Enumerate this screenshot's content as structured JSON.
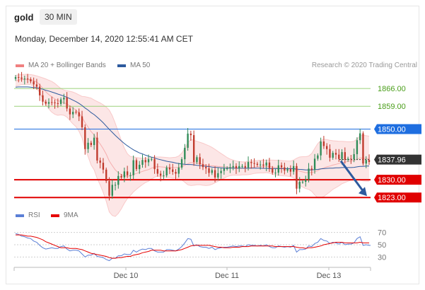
{
  "header": {
    "symbol": "gold",
    "timeframe": "30 MIN",
    "datetime": "Monday, December 14, 2020 12:55:41 AM CET"
  },
  "legend": {
    "bb_label": "MA 20 + Bollinger Bands",
    "ma50_label": "MA 50",
    "credit": "Research © 2020 Trading Central"
  },
  "rsi_legend": {
    "rsi_label": "RSI",
    "ma_label": "9MA"
  },
  "colors": {
    "bollinger": "#f08080",
    "ma50": "#2d5a9e",
    "resistance_green": "#4a9e1a",
    "pivot_blue": "#1e6ee0",
    "support_red": "#e00000",
    "current_price": "#333333",
    "candle_up": "#2e8b57",
    "candle_down": "#c0392b",
    "rsi": "#5b7fd6",
    "rsi_ma": "#e60000"
  },
  "chart_data": [
    {
      "type": "candlestick",
      "title": "",
      "ylim": [
        1820,
        1873
      ],
      "x_ticks": [
        "Dec 10",
        "Dec 11",
        "Dec 13"
      ],
      "series": [
        {
          "name": "MA 20 + Bollinger Bands",
          "kind": "bollinger"
        },
        {
          "name": "MA 50",
          "kind": "line"
        }
      ],
      "close": [
        1870.5,
        1870.3,
        1869.8,
        1869.9,
        1869.6,
        1868.8,
        1867.6,
        1866.7,
        1863.3,
        1860.8,
        1860.0,
        1860.6,
        1860.5,
        1860.2,
        1859.9,
        1861.7,
        1862.4,
        1858.1,
        1855.8,
        1856.8,
        1856.6,
        1855.0,
        1850.7,
        1842.1,
        1844.6,
        1843.7,
        1846.6,
        1837.6,
        1836.7,
        1834.0,
        1829.5,
        1823.7,
        1828.0,
        1828.0,
        1831.5,
        1830.9,
        1833.3,
        1831.8,
        1831.8,
        1837.7,
        1834.2,
        1835.9,
        1837.8,
        1836.9,
        1838.1,
        1838.2,
        1834.2,
        1832.4,
        1831.6,
        1831.7,
        1834.8,
        1834.1,
        1833.1,
        1832.4,
        1834.8,
        1838.1,
        1842.6,
        1848.2,
        1847.6,
        1837.0,
        1838.9,
        1836.1,
        1835.0,
        1834.5,
        1832.7,
        1833.8,
        1830.9,
        1832.6,
        1833.5,
        1834.4,
        1834.5,
        1834.9,
        1835.4,
        1834.5,
        1835.4,
        1835.4,
        1834.8,
        1837.0,
        1836.6,
        1836.3,
        1835.9,
        1836.0,
        1835.6,
        1836.8,
        1834.6,
        1832.8,
        1832.8,
        1835.7,
        1834.9,
        1833.6,
        1834.2,
        1833.2,
        1835.4,
        1826.5,
        1829.2,
        1829.2,
        1830.1,
        1834.4,
        1833.9,
        1838.3,
        1839.6,
        1845.1,
        1843.3,
        1842.1,
        1838.7,
        1840.6,
        1839.9,
        1838.2,
        1840.9,
        1837.9,
        1838.3,
        1838.1,
        1840.1,
        1845.6,
        1848.3,
        1836.4,
        1837.8,
        1837.0
      ],
      "open": [
        1869.8,
        1870.5,
        1870.3,
        1869.8,
        1869.9,
        1869.6,
        1868.8,
        1867.6,
        1866.7,
        1863.3,
        1860.8,
        1860.0,
        1860.6,
        1860.5,
        1860.2,
        1859.9,
        1861.7,
        1862.4,
        1858.1,
        1855.8,
        1856.8,
        1856.6,
        1855.0,
        1850.7,
        1842.1,
        1844.6,
        1843.7,
        1846.6,
        1837.6,
        1836.7,
        1834.0,
        1829.5,
        1823.7,
        1828.0,
        1828.0,
        1831.5,
        1830.9,
        1833.3,
        1831.8,
        1831.8,
        1837.7,
        1834.2,
        1835.9,
        1837.8,
        1836.9,
        1838.1,
        1838.2,
        1834.2,
        1832.4,
        1831.6,
        1831.7,
        1834.8,
        1834.1,
        1833.1,
        1832.4,
        1834.8,
        1838.1,
        1842.6,
        1848.2,
        1847.6,
        1837.0,
        1838.9,
        1836.1,
        1835.0,
        1834.5,
        1832.7,
        1833.8,
        1830.9,
        1832.6,
        1833.5,
        1834.4,
        1834.5,
        1834.9,
        1835.4,
        1834.5,
        1835.4,
        1835.4,
        1834.8,
        1837.0,
        1836.6,
        1836.3,
        1835.9,
        1836.0,
        1835.6,
        1836.8,
        1834.6,
        1832.8,
        1832.8,
        1835.7,
        1834.9,
        1833.6,
        1834.2,
        1833.2,
        1835.4,
        1826.5,
        1829.2,
        1829.2,
        1830.1,
        1834.4,
        1833.9,
        1838.3,
        1839.6,
        1845.1,
        1843.3,
        1842.1,
        1838.7,
        1840.6,
        1839.9,
        1838.2,
        1840.9,
        1837.9,
        1838.3,
        1838.1,
        1840.1,
        1845.6,
        1848.3,
        1836.4,
        1837.8
      ],
      "ma20": [
        1869.0,
        1869.3,
        1869.5,
        1869.6,
        1869.6,
        1869.5,
        1869.1,
        1868.5,
        1867.5,
        1866.1,
        1864.7,
        1863.6,
        1862.7,
        1861.9,
        1861.2,
        1860.8,
        1860.4,
        1859.9,
        1859.1,
        1858.3,
        1857.5,
        1856.3,
        1854.7,
        1852.5,
        1850.8,
        1849.0,
        1847.7,
        1845.7,
        1844.1,
        1842.3,
        1840.1,
        1837.4,
        1835.6,
        1833.9,
        1832.8,
        1832.0,
        1831.6,
        1831.4,
        1831.5,
        1832.1,
        1832.5,
        1832.9,
        1833.3,
        1833.7,
        1834.0,
        1834.6,
        1835.0,
        1835.2,
        1835.1,
        1835.0,
        1834.9,
        1834.8,
        1834.7,
        1834.8,
        1834.9,
        1835.2,
        1835.7,
        1836.3,
        1836.8,
        1836.7,
        1836.6,
        1836.4,
        1836.1,
        1835.8,
        1835.6,
        1835.5,
        1835.4,
        1835.3,
        1835.2,
        1835.1,
        1835.0,
        1834.9,
        1834.8,
        1834.6,
        1834.5,
        1834.5,
        1834.5,
        1834.6,
        1834.8,
        1835.0,
        1835.1,
        1835.2,
        1835.2,
        1835.3,
        1835.2,
        1835.0,
        1834.8,
        1834.7,
        1834.6,
        1834.5,
        1834.4,
        1834.3,
        1834.3,
        1833.8,
        1833.4,
        1833.1,
        1832.8,
        1832.8,
        1832.9,
        1833.2,
        1833.6,
        1834.2,
        1834.7,
        1835.1,
        1835.4,
        1835.8,
        1836.1,
        1836.4,
        1836.8,
        1837.0,
        1837.2,
        1837.4,
        1837.6,
        1838.1,
        1838.6,
        1838.5,
        1838.4,
        1838.3
      ],
      "bb_upper": [
        1871.2,
        1871.4,
        1871.5,
        1871.6,
        1871.6,
        1871.5,
        1871.3,
        1871.0,
        1870.6,
        1870.2,
        1869.8,
        1869.3,
        1868.8,
        1868.0,
        1867.0,
        1866.0,
        1865.4,
        1865.1,
        1864.9,
        1864.6,
        1864.1,
        1863.5,
        1862.9,
        1862.8,
        1862.5,
        1862.2,
        1861.5,
        1860.9,
        1860.3,
        1859.6,
        1858.7,
        1857.5,
        1855.3,
        1852.3,
        1848.9,
        1845.5,
        1842.5,
        1840.3,
        1839.2,
        1839.0,
        1838.8,
        1838.6,
        1838.5,
        1838.5,
        1838.6,
        1838.9,
        1839.0,
        1839.0,
        1839.0,
        1838.9,
        1838.8,
        1838.7,
        1838.8,
        1838.9,
        1839.4,
        1840.5,
        1842.4,
        1844.6,
        1845.9,
        1845.6,
        1845.2,
        1844.8,
        1844.4,
        1843.9,
        1843.4,
        1842.8,
        1842.0,
        1841.2,
        1840.4,
        1839.6,
        1838.8,
        1838.2,
        1837.8,
        1837.4,
        1837.2,
        1837.1,
        1837.1,
        1837.2,
        1837.4,
        1837.5,
        1837.6,
        1837.7,
        1837.7,
        1837.8,
        1837.8,
        1837.8,
        1837.7,
        1837.7,
        1837.6,
        1837.5,
        1837.4,
        1837.4,
        1837.8,
        1838.5,
        1839.0,
        1839.1,
        1839.1,
        1839.4,
        1840.4,
        1842.4,
        1844.3,
        1845.5,
        1846.0,
        1845.9,
        1845.6,
        1845.4,
        1845.3,
        1845.2,
        1845.2,
        1845.1,
        1845.0,
        1845.0,
        1845.2,
        1846.1,
        1847.4,
        1847.5,
        1847.4,
        1847.2
      ],
      "bb_lower": [
        1866.8,
        1867.2,
        1867.5,
        1867.6,
        1867.6,
        1867.5,
        1866.9,
        1866.0,
        1864.4,
        1862.0,
        1859.6,
        1857.9,
        1856.6,
        1855.8,
        1855.4,
        1855.6,
        1855.4,
        1854.7,
        1853.3,
        1852.0,
        1850.9,
        1849.1,
        1846.5,
        1842.2,
        1839.1,
        1835.8,
        1833.9,
        1830.5,
        1827.9,
        1825.0,
        1821.5,
        1817.3,
        1815.9,
        1815.5,
        1816.7,
        1818.5,
        1820.7,
        1822.5,
        1823.8,
        1825.2,
        1826.2,
        1827.2,
        1828.1,
        1828.9,
        1829.4,
        1830.3,
        1831.0,
        1831.4,
        1831.2,
        1831.1,
        1831.0,
        1830.9,
        1830.6,
        1830.7,
        1830.4,
        1829.9,
        1829.0,
        1828.0,
        1827.7,
        1827.8,
        1828.0,
        1828.0,
        1827.8,
        1827.7,
        1827.8,
        1828.2,
        1828.8,
        1829.4,
        1830.0,
        1830.6,
        1831.2,
        1831.6,
        1831.8,
        1831.8,
        1831.8,
        1831.9,
        1831.9,
        1832.0,
        1832.2,
        1832.5,
        1832.6,
        1832.7,
        1832.7,
        1832.8,
        1832.6,
        1832.2,
        1831.9,
        1831.7,
        1831.6,
        1831.5,
        1831.4,
        1831.2,
        1830.8,
        1829.1,
        1827.8,
        1827.1,
        1826.5,
        1826.2,
        1825.4,
        1824.0,
        1822.9,
        1822.9,
        1823.4,
        1824.3,
        1825.2,
        1826.2,
        1826.9,
        1827.6,
        1828.4,
        1828.9,
        1829.4,
        1829.8,
        1830.0,
        1830.1,
        1829.8,
        1829.5,
        1829.4,
        1829.4
      ],
      "ma50": [
        1866.5,
        1866.6,
        1866.6,
        1866.6,
        1866.6,
        1866.5,
        1866.4,
        1866.3,
        1866.0,
        1865.7,
        1865.3,
        1865.0,
        1864.6,
        1864.2,
        1863.8,
        1863.4,
        1863.0,
        1862.5,
        1862.0,
        1861.4,
        1860.8,
        1860.1,
        1859.3,
        1858.3,
        1857.5,
        1856.5,
        1855.7,
        1854.7,
        1853.6,
        1852.5,
        1851.2,
        1849.9,
        1848.7,
        1847.5,
        1846.4,
        1845.3,
        1844.3,
        1843.4,
        1842.6,
        1841.8,
        1841.2,
        1840.6,
        1840.2,
        1839.7,
        1839.3,
        1838.9,
        1838.6,
        1838.2,
        1837.9,
        1837.6,
        1837.3,
        1837.1,
        1836.9,
        1836.6,
        1836.4,
        1836.2,
        1836.1,
        1836.0,
        1836.0,
        1835.9,
        1835.7,
        1835.6,
        1835.5,
        1835.3,
        1835.2,
        1835.0,
        1834.9,
        1834.8,
        1834.7,
        1834.6,
        1834.6,
        1834.6,
        1834.6,
        1834.6,
        1834.6,
        1834.6,
        1834.6,
        1834.6,
        1834.6,
        1834.6,
        1834.6,
        1834.6,
        1834.5,
        1834.5,
        1834.4,
        1834.4,
        1834.4,
        1834.4,
        1834.4,
        1834.4,
        1834.4,
        1834.4,
        1834.4,
        1834.2,
        1834.1,
        1834.0,
        1833.9,
        1833.9,
        1833.9,
        1834.0,
        1834.1,
        1834.3,
        1834.4,
        1834.5,
        1834.6,
        1834.6,
        1834.7,
        1834.7,
        1834.8,
        1834.8,
        1834.8,
        1834.8,
        1834.9,
        1835.1,
        1835.3,
        1835.3,
        1835.4,
        1835.4
      ],
      "levels": [
        {
          "value": 1866.0,
          "label": "1866.00",
          "kind": "resistance"
        },
        {
          "value": 1859.0,
          "label": "1859.00",
          "kind": "resistance"
        },
        {
          "value": 1850.0,
          "label": "1850.00",
          "kind": "pivot"
        },
        {
          "value": 1837.96,
          "label": "1837.96",
          "kind": "current"
        },
        {
          "value": 1830.0,
          "label": "1830.00",
          "kind": "support"
        },
        {
          "value": 1823.0,
          "label": "1823.00",
          "kind": "support"
        }
      ],
      "forecast_arrow": {
        "from": 1837.96,
        "to": 1823.0
      }
    },
    {
      "type": "line",
      "title": "",
      "ylim": [
        20,
        80
      ],
      "y_ticks": [
        70,
        50,
        30
      ],
      "series": [
        {
          "name": "RSI",
          "values": [
            68,
            67,
            64,
            63,
            61,
            60,
            56,
            54,
            49,
            45,
            43,
            44,
            45,
            44,
            44,
            47,
            48,
            43,
            40,
            41,
            41,
            40,
            35,
            30,
            33,
            33,
            36,
            31,
            30,
            29,
            26,
            24,
            28,
            28,
            32,
            32,
            35,
            34,
            34,
            41,
            38,
            41,
            43,
            42,
            44,
            44,
            40,
            38,
            38,
            38,
            42,
            42,
            41,
            40,
            43,
            47,
            53,
            60,
            59,
            48,
            50,
            47,
            46,
            46,
            44,
            46,
            42,
            44,
            45,
            46,
            46,
            47,
            48,
            47,
            48,
            48,
            47,
            50,
            49,
            49,
            48,
            49,
            48,
            50,
            47,
            45,
            45,
            48,
            47,
            46,
            47,
            46,
            49,
            38,
            42,
            42,
            43,
            48,
            47,
            52,
            54,
            60,
            57,
            56,
            52,
            54,
            53,
            51,
            54,
            50,
            51,
            51,
            53,
            60,
            63,
            49,
            50,
            49
          ]
        },
        {
          "name": "9MA",
          "values": [
            66,
            66,
            66,
            65,
            64,
            64,
            63,
            62,
            60,
            58,
            55,
            53,
            51,
            49,
            47,
            45,
            45,
            45,
            44,
            44,
            44,
            43,
            42,
            40,
            38,
            36,
            35,
            34,
            33,
            32,
            31,
            29,
            28,
            28,
            29,
            29,
            30,
            31,
            31,
            33,
            34,
            35,
            37,
            38,
            39,
            41,
            41,
            41,
            41,
            40,
            40,
            40,
            40,
            40,
            41,
            42,
            44,
            46,
            48,
            49,
            49,
            49,
            49,
            49,
            49,
            48,
            47,
            46,
            46,
            45,
            45,
            45,
            46,
            46,
            46,
            47,
            47,
            47,
            48,
            48,
            48,
            48,
            48,
            48,
            48,
            48,
            47,
            47,
            47,
            47,
            47,
            47,
            47,
            46,
            45,
            45,
            44,
            45,
            45,
            46,
            47,
            48,
            50,
            51,
            52,
            53,
            54,
            54,
            54,
            53,
            53,
            53,
            53,
            53,
            54,
            53,
            53,
            53
          ]
        }
      ]
    }
  ]
}
